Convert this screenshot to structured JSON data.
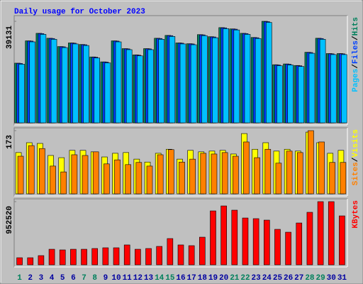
{
  "title": "Daily usage for October 2023",
  "x_axis": {
    "categories": [
      "1",
      "2",
      "3",
      "4",
      "5",
      "6",
      "7",
      "8",
      "9",
      "10",
      "11",
      "12",
      "13",
      "14",
      "15",
      "16",
      "17",
      "18",
      "19",
      "20",
      "21",
      "22",
      "23",
      "24",
      "25",
      "26",
      "27",
      "28",
      "29",
      "30",
      "31"
    ],
    "colors": [
      "#00805c",
      "#0000a0",
      "#0000a0",
      "#0000a0",
      "#0000a0",
      "#0000a0",
      "#00805c",
      "#00805c",
      "#0000a0",
      "#0000a0",
      "#0000a0",
      "#0000a0",
      "#0000a0",
      "#00805c",
      "#00805c",
      "#0000a0",
      "#0000a0",
      "#0000a0",
      "#0000a0",
      "#0000a0",
      "#00805c",
      "#00805c",
      "#0000a0",
      "#0000a0",
      "#0000a0",
      "#0000a0",
      "#0000a0",
      "#00805c",
      "#00805c",
      "#0000a0",
      "#0000a0"
    ]
  },
  "chart_data": [
    {
      "type": "bar",
      "separator": "/",
      "ylim": [
        0,
        39131
      ],
      "yticks": [
        39131
      ],
      "series": [
        {
          "name": "Hits",
          "color": "#00805c",
          "values": [
            23000,
            31600,
            34500,
            32600,
            29400,
            30800,
            30200,
            25400,
            23500,
            31600,
            28600,
            26200,
            28600,
            32600,
            33700,
            30800,
            30500,
            34000,
            33200,
            36700,
            36200,
            34500,
            32900,
            39131,
            22400,
            22700,
            22100,
            27200,
            32600,
            26700,
            26700
          ]
        },
        {
          "name": "Files",
          "color": "#0040ff",
          "values": [
            22900,
            31500,
            34400,
            32500,
            29300,
            30700,
            30100,
            25300,
            23400,
            31500,
            28500,
            26100,
            28500,
            32500,
            33600,
            30700,
            30400,
            33900,
            33100,
            36600,
            36100,
            34400,
            32800,
            39000,
            22300,
            22600,
            22000,
            27100,
            32500,
            26600,
            26600
          ]
        },
        {
          "name": "Pages",
          "color": "#00c0ff",
          "values": [
            22600,
            31200,
            34100,
            32200,
            29000,
            30400,
            29800,
            25000,
            23100,
            31200,
            28200,
            25800,
            28200,
            32200,
            33300,
            30400,
            30100,
            33600,
            32800,
            36300,
            35800,
            34100,
            32500,
            38700,
            22000,
            22300,
            21700,
            26800,
            32200,
            26300,
            26300
          ]
        }
      ]
    },
    {
      "type": "bar",
      "separator": "/",
      "ylim": [
        0,
        173
      ],
      "yticks": [
        173
      ],
      "series": [
        {
          "name": "Visits",
          "color": "#ffff00",
          "values": [
            113,
            140,
            138,
            105,
            99,
            119,
            119,
            115,
            101,
            111,
            113,
            95,
            87,
            111,
            122,
            95,
            119,
            115,
            117,
            119,
            109,
            165,
            122,
            140,
            117,
            122,
            117,
            169,
            140,
            111,
            119
          ]
        },
        {
          "name": "Sites",
          "color": "#ff8000",
          "values": [
            103,
            132,
            124,
            76,
            60,
            107,
            105,
            115,
            82,
            93,
            80,
            86,
            76,
            107,
            121,
            87,
            95,
            111,
            109,
            113,
            103,
            142,
            99,
            122,
            84,
            117,
            113,
            173,
            142,
            86,
            86
          ]
        }
      ]
    },
    {
      "type": "bar",
      "separator": "/",
      "ylim": [
        0,
        952520
      ],
      "yticks": [
        952520
      ],
      "series": [
        {
          "name": "KBytes",
          "color": "#ff0000",
          "values": [
            107000,
            107000,
            139000,
            235000,
            225000,
            235000,
            235000,
            246000,
            257000,
            257000,
            300000,
            235000,
            246000,
            278000,
            396000,
            300000,
            289000,
            417000,
            813000,
            888000,
            824000,
            706000,
            696000,
            674000,
            535000,
            492000,
            631000,
            792000,
            952520,
            952520,
            738000
          ]
        }
      ]
    }
  ]
}
